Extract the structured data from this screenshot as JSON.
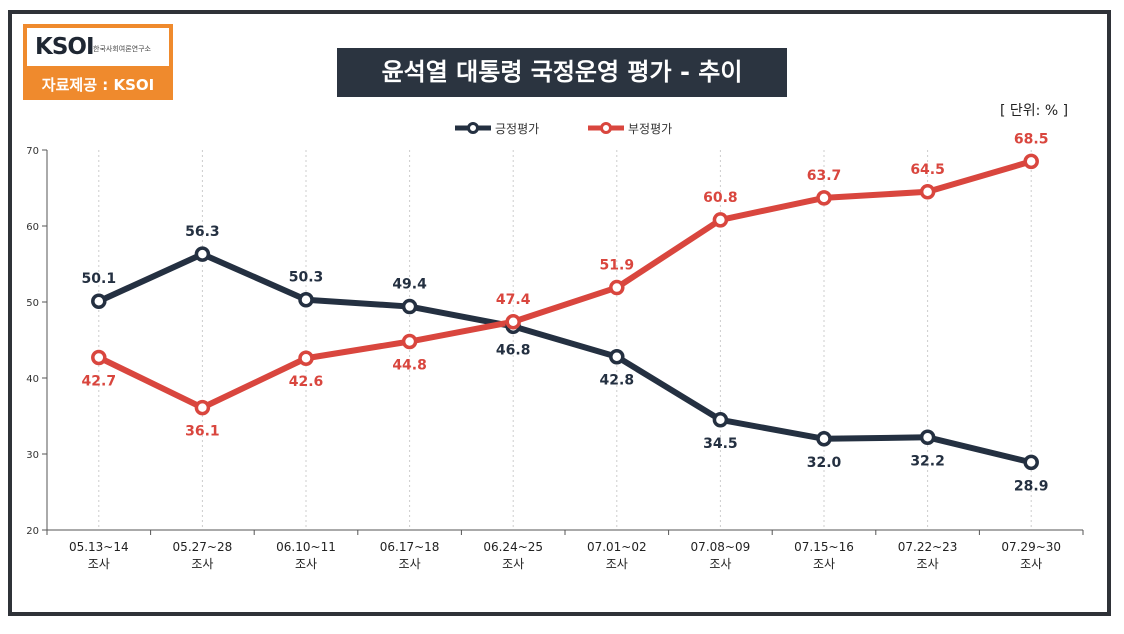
{
  "logo": {
    "mark_text": "KSOI",
    "org_text": "한국사회여론연구소",
    "credit": "자료제공 : KSOI"
  },
  "unit_label": "[ 단위: % ]",
  "colors": {
    "positive": "#243041",
    "negative": "#d9463e",
    "accent": "#ef8a2d",
    "title_bg": "#2b3440",
    "frame": "#2f3238",
    "grid": "#cccccc"
  },
  "chart_data": {
    "type": "line",
    "title": "윤석열 대통령 국정운영 평가 - 추이",
    "categories": [
      [
        "05.13~14",
        "조사"
      ],
      [
        "05.27~28",
        "조사"
      ],
      [
        "06.10~11",
        "조사"
      ],
      [
        "06.17~18",
        "조사"
      ],
      [
        "06.24~25",
        "조사"
      ],
      [
        "07.01~02",
        "조사"
      ],
      [
        "07.08~09",
        "조사"
      ],
      [
        "07.15~16",
        "조사"
      ],
      [
        "07.22~23",
        "조사"
      ],
      [
        "07.29~30",
        "조사"
      ]
    ],
    "series": [
      {
        "name": "긍정평가",
        "color": "#243041",
        "values": [
          50.1,
          56.3,
          50.3,
          49.4,
          46.8,
          42.8,
          34.5,
          32.0,
          32.2,
          28.9
        ],
        "value_labels": [
          "50.1",
          "56.3",
          "50.3",
          "49.4",
          "46.8",
          "42.8",
          "34.5",
          "32.0",
          "32.2",
          "28.9"
        ]
      },
      {
        "name": "부정평가",
        "color": "#d9463e",
        "values": [
          42.7,
          36.1,
          42.6,
          44.8,
          47.4,
          51.9,
          60.8,
          63.7,
          64.5,
          68.5
        ],
        "value_labels": [
          "42.7",
          "36.1",
          "42.6",
          "44.8",
          "47.4",
          "51.9",
          "60.8",
          "63.7",
          "64.5",
          "68.5"
        ]
      }
    ],
    "y_ticks": [
      20,
      30,
      40,
      50,
      60,
      70
    ],
    "ylim": [
      20,
      70
    ],
    "grid": "vertical-dashed",
    "legend_position": "top-center"
  }
}
